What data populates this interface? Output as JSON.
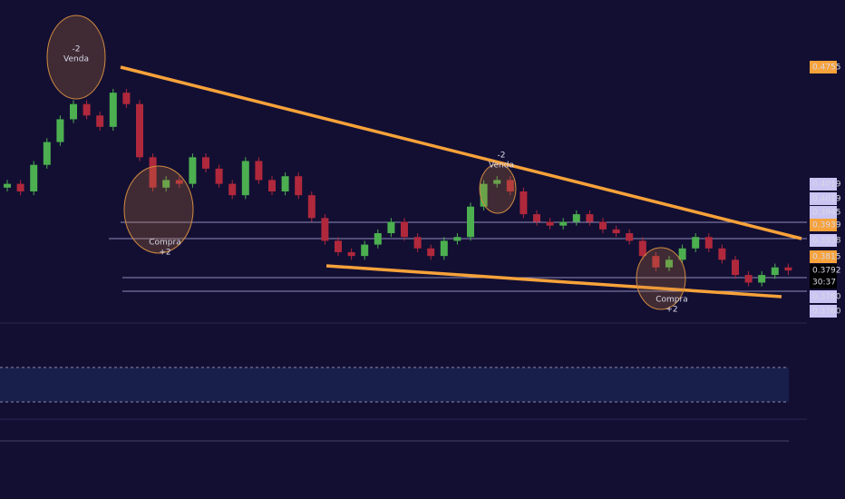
{
  "chart_data": {
    "type": "candlestick",
    "open": [
      0.401,
      0.402,
      0.4,
      0.407,
      0.413,
      0.419,
      0.423,
      0.42,
      0.417,
      0.426,
      0.423,
      0.409,
      0.401,
      0.403,
      0.402,
      0.409,
      0.406,
      0.402,
      0.399,
      0.408,
      0.403,
      0.4,
      0.404,
      0.399,
      0.393,
      0.387,
      0.384,
      0.383,
      0.386,
      0.389,
      0.392,
      0.388,
      0.385,
      0.383,
      0.387,
      0.388,
      0.396,
      0.402,
      0.403,
      0.4,
      0.394,
      0.392,
      0.391,
      0.392,
      0.394,
      0.392,
      0.39,
      0.389,
      0.387,
      0.383,
      0.38,
      0.382,
      0.385,
      0.388,
      0.385,
      0.382,
      0.378,
      0.376,
      0.378,
      0.38
    ],
    "high": [
      0.403,
      0.403,
      0.408,
      0.414,
      0.42,
      0.424,
      0.424,
      0.421,
      0.427,
      0.427,
      0.424,
      0.41,
      0.404,
      0.404,
      0.41,
      0.41,
      0.407,
      0.403,
      0.409,
      0.409,
      0.404,
      0.405,
      0.405,
      0.4,
      0.394,
      0.388,
      0.385,
      0.387,
      0.39,
      0.393,
      0.393,
      0.389,
      0.386,
      0.388,
      0.389,
      0.397,
      0.403,
      0.404,
      0.404,
      0.401,
      0.395,
      0.393,
      0.393,
      0.395,
      0.395,
      0.393,
      0.391,
      0.39,
      0.388,
      0.384,
      0.383,
      0.386,
      0.389,
      0.389,
      0.386,
      0.383,
      0.379,
      0.379,
      0.381,
      0.381
    ],
    "low": [
      0.4,
      0.399,
      0.399,
      0.406,
      0.412,
      0.418,
      0.419,
      0.416,
      0.416,
      0.422,
      0.408,
      0.4,
      0.4,
      0.401,
      0.401,
      0.405,
      0.401,
      0.398,
      0.398,
      0.402,
      0.399,
      0.399,
      0.398,
      0.392,
      0.386,
      0.383,
      0.382,
      0.382,
      0.385,
      0.388,
      0.387,
      0.384,
      0.382,
      0.382,
      0.386,
      0.387,
      0.395,
      0.401,
      0.399,
      0.393,
      0.391,
      0.39,
      0.39,
      0.391,
      0.391,
      0.389,
      0.388,
      0.386,
      0.382,
      0.379,
      0.379,
      0.381,
      0.384,
      0.384,
      0.381,
      0.377,
      0.375,
      0.375,
      0.377,
      0.378
    ],
    "close": [
      0.402,
      0.4,
      0.407,
      0.413,
      0.419,
      0.423,
      0.42,
      0.417,
      0.426,
      0.423,
      0.409,
      0.401,
      0.403,
      0.402,
      0.409,
      0.406,
      0.402,
      0.399,
      0.408,
      0.403,
      0.4,
      0.404,
      0.399,
      0.393,
      0.387,
      0.384,
      0.383,
      0.386,
      0.389,
      0.392,
      0.388,
      0.385,
      0.383,
      0.387,
      0.388,
      0.396,
      0.402,
      0.403,
      0.4,
      0.394,
      0.392,
      0.391,
      0.392,
      0.394,
      0.392,
      0.39,
      0.389,
      0.387,
      0.383,
      0.38,
      0.382,
      0.385,
      0.388,
      0.385,
      0.382,
      0.378,
      0.376,
      0.378,
      0.38,
      0.3792
    ],
    "ylim": [
      0.3656,
      0.4504
    ],
    "up_color": "#4caf50",
    "down_color": "#b0283c",
    "price_labels": [
      "0.4755",
      "0.4019",
      "0.4019",
      "0.3945",
      "0.3939",
      "0.3938",
      "0.3815",
      "0.3792",
      "30:37",
      "0.3760",
      "0.3760"
    ],
    "annotations": [
      [
        "-2",
        "Venda"
      ],
      [
        "Compra",
        "+2"
      ],
      [
        "-2",
        "Venda"
      ],
      [
        "Compra",
        "+2"
      ]
    ]
  }
}
